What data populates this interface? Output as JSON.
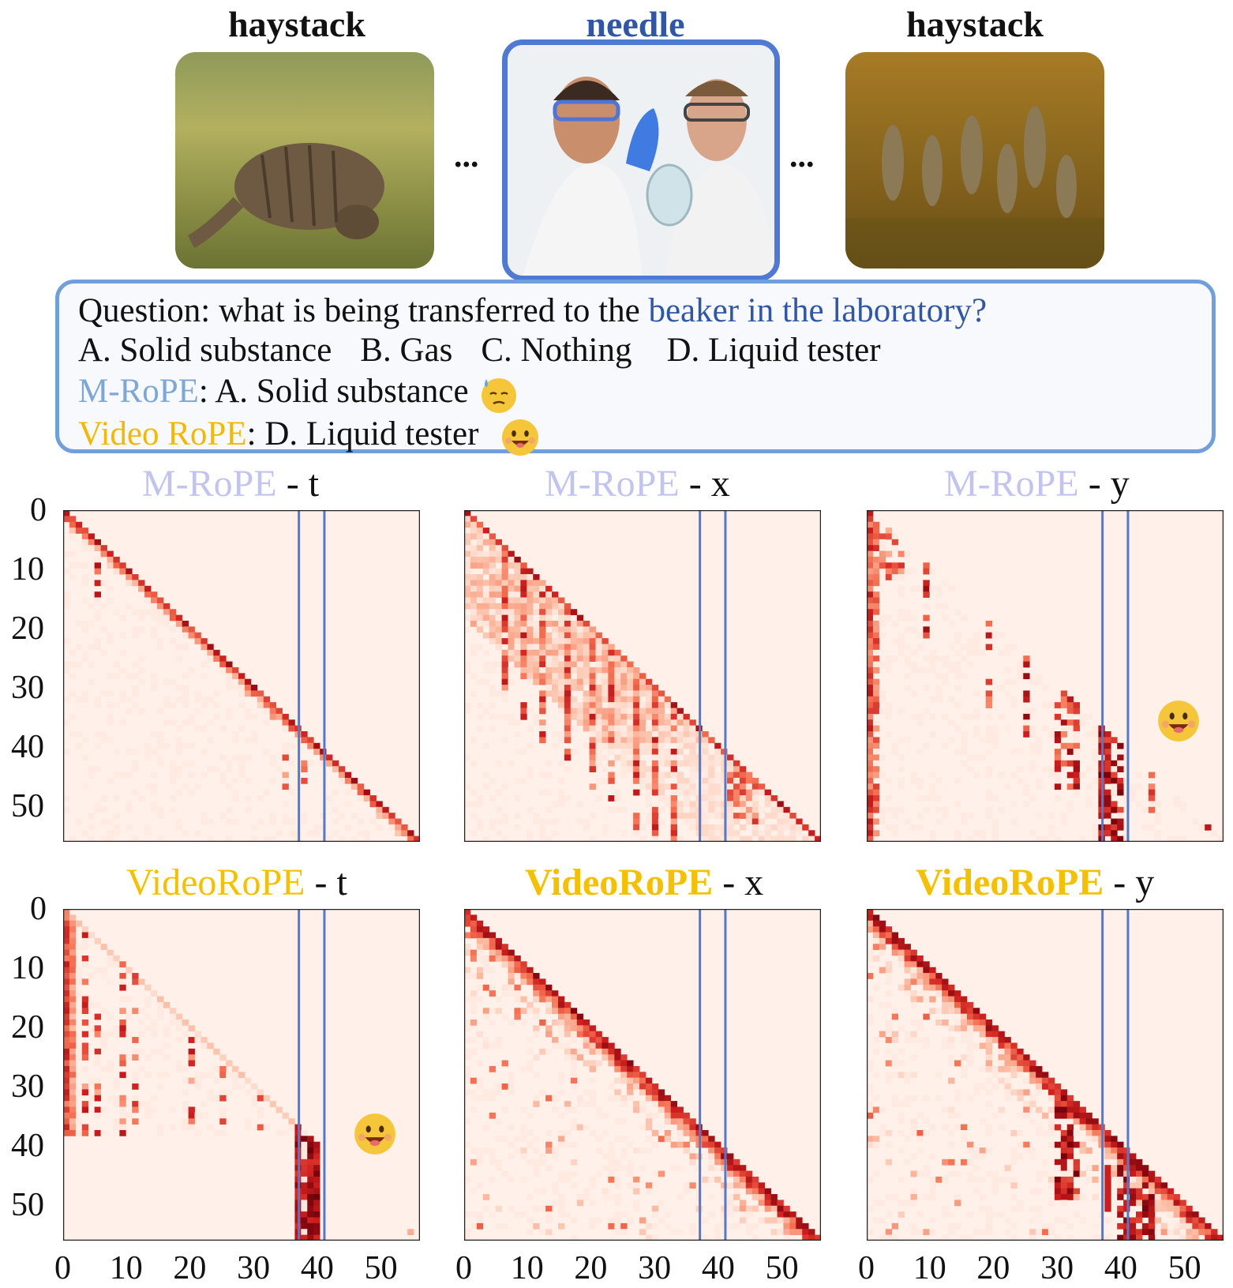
{
  "header": {
    "frames": [
      {
        "label": "haystack",
        "kind": "haystack",
        "color": "#111111"
      },
      {
        "label": "needle",
        "kind": "needle",
        "color": "#2f57a6"
      },
      {
        "label": "haystack",
        "kind": "haystack",
        "color": "#111111"
      }
    ],
    "ellipsis": "..."
  },
  "question": {
    "prefix": "Question: what is being transferred to the ",
    "highlight": "beaker in the laboratory?",
    "highlight_color": "#2f57a6",
    "options": [
      "A. Solid substance",
      "B. Gas",
      "C. Nothing",
      "D. Liquid tester"
    ],
    "answers": [
      {
        "method": "M-RoPE",
        "method_color": "#7ba7d9",
        "answer": ": A. Solid substance",
        "emoji": "sweat-face"
      },
      {
        "method": "Video RoPE",
        "method_color": "#f5b800",
        "answer": ": D. Liquid tester",
        "emoji": "smile-face"
      }
    ]
  },
  "colors": {
    "mrope_title": "#c2c4f0",
    "videorope_title": "#f5c000",
    "needle_lines": "#4f79d3",
    "heat_low": "#fff0ea",
    "heat_high": "#8b0000"
  },
  "chart_data": [
    {
      "type": "heatmap",
      "method": "M-RoPE",
      "suffix": " - t",
      "pattern": "diagonal-sparse",
      "xlim": [
        0,
        56
      ],
      "ylim": [
        0,
        56
      ],
      "yticks": [
        0,
        10,
        20,
        30,
        40,
        50
      ],
      "xticks": [],
      "needle_range": [
        37,
        41
      ],
      "emoji": false
    },
    {
      "type": "heatmap",
      "method": "M-RoPE",
      "suffix": " - x",
      "pattern": "lower-columns",
      "xlim": [
        0,
        56
      ],
      "ylim": [
        0,
        56
      ],
      "yticks": [],
      "xticks": [],
      "needle_range": [
        37,
        41
      ],
      "emoji": false
    },
    {
      "type": "heatmap",
      "method": "M-RoPE",
      "suffix": " - y",
      "pattern": "sparse-cols",
      "xlim": [
        0,
        56
      ],
      "ylim": [
        0,
        56
      ],
      "yticks": [],
      "xticks": [],
      "needle_range": [
        37,
        41
      ],
      "emoji": true
    },
    {
      "type": "heatmap",
      "method": "VideoRoPE",
      "suffix": " - t",
      "pattern": "first-col-needle",
      "xlim": [
        0,
        56
      ],
      "ylim": [
        0,
        56
      ],
      "yticks": [
        0,
        10,
        20,
        30,
        40,
        50
      ],
      "xticks": [
        0,
        10,
        20,
        30,
        40,
        50
      ],
      "needle_range": [
        37,
        41
      ],
      "emoji": true
    },
    {
      "type": "heatmap",
      "method": "VideoRoPE",
      "suffix": " - x",
      "pattern": "diagonal-dense",
      "xlim": [
        0,
        56
      ],
      "ylim": [
        0,
        56
      ],
      "yticks": [],
      "xticks": [
        0,
        10,
        20,
        30,
        40,
        50
      ],
      "needle_range": [
        37,
        41
      ],
      "emoji": false
    },
    {
      "type": "heatmap",
      "method": "VideoRoPE",
      "suffix": " - y",
      "pattern": "diagonal-dense-needle",
      "xlim": [
        0,
        56
      ],
      "ylim": [
        0,
        56
      ],
      "yticks": [],
      "xticks": [
        0,
        10,
        20,
        30,
        40,
        50
      ],
      "needle_range": [
        37,
        41
      ],
      "emoji": false
    }
  ]
}
